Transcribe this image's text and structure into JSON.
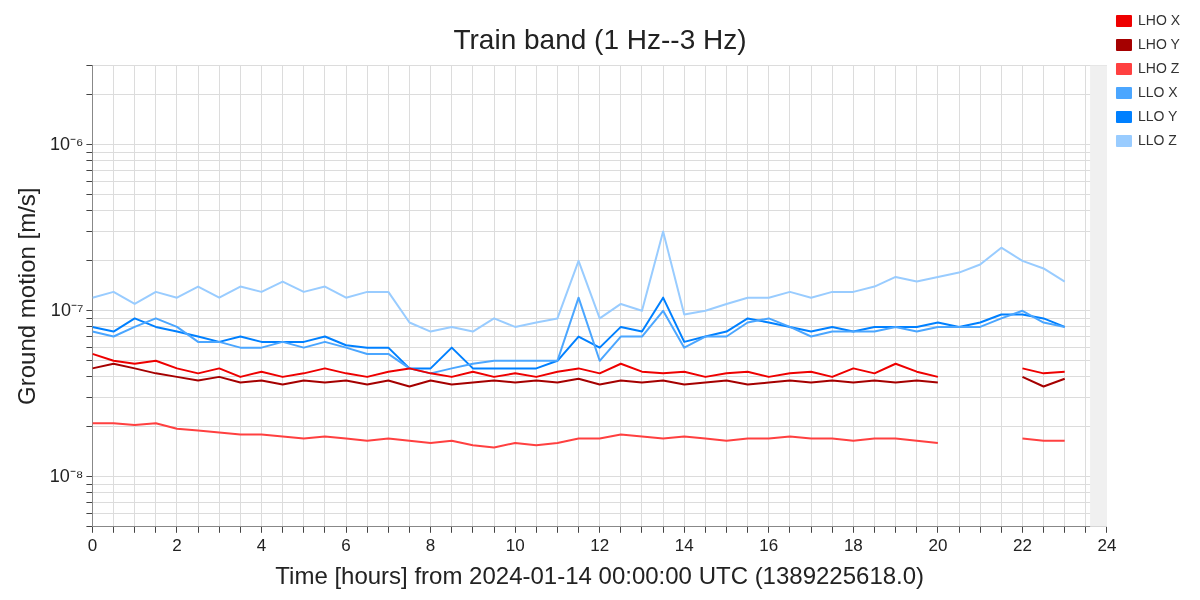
{
  "chart_data": {
    "type": "line",
    "title": "Train band (1 Hz--3 Hz)",
    "xlabel": "Time [hours] from 2024-01-14 00:00:00 UTC (1389225618.0)",
    "ylabel": "Ground motion [m/s]",
    "x": [
      0,
      0.5,
      1,
      1.5,
      2,
      2.5,
      3,
      3.5,
      4,
      4.5,
      5,
      5.5,
      6,
      6.5,
      7,
      7.5,
      8,
      8.5,
      9,
      9.5,
      10,
      10.5,
      11,
      11.5,
      12,
      12.5,
      13,
      13.5,
      14,
      14.5,
      15,
      15.5,
      16,
      16.5,
      17,
      17.5,
      18,
      18.5,
      19,
      19.5,
      20,
      20.5,
      21,
      21.5,
      22,
      22.5,
      23
    ],
    "series": [
      {
        "name": "LHO X",
        "color": "#ee0000",
        "values": [
          5.5e-08,
          5e-08,
          4.8e-08,
          5e-08,
          4.5e-08,
          4.2e-08,
          4.5e-08,
          4e-08,
          4.3e-08,
          4e-08,
          4.2e-08,
          4.5e-08,
          4.2e-08,
          4e-08,
          4.3e-08,
          4.5e-08,
          4.2e-08,
          4e-08,
          4.3e-08,
          4e-08,
          4.2e-08,
          4e-08,
          4.3e-08,
          4.5e-08,
          4.2e-08,
          4.8e-08,
          4.3e-08,
          4.2e-08,
          4.3e-08,
          4e-08,
          4.2e-08,
          4.3e-08,
          4e-08,
          4.2e-08,
          4.3e-08,
          4e-08,
          4.5e-08,
          4.2e-08,
          4.8e-08,
          4.3e-08,
          4e-08,
          null,
          null,
          null,
          4.5e-08,
          4.2e-08,
          4.3e-08
        ]
      },
      {
        "name": "LHO Y",
        "color": "#a50000",
        "values": [
          4.5e-08,
          4.8e-08,
          4.5e-08,
          4.2e-08,
          4e-08,
          3.8e-08,
          4e-08,
          3.7e-08,
          3.8e-08,
          3.6e-08,
          3.8e-08,
          3.7e-08,
          3.8e-08,
          3.6e-08,
          3.8e-08,
          3.5e-08,
          3.8e-08,
          3.6e-08,
          3.7e-08,
          3.8e-08,
          3.7e-08,
          3.8e-08,
          3.7e-08,
          3.9e-08,
          3.6e-08,
          3.8e-08,
          3.7e-08,
          3.8e-08,
          3.6e-08,
          3.7e-08,
          3.8e-08,
          3.6e-08,
          3.7e-08,
          3.8e-08,
          3.7e-08,
          3.8e-08,
          3.7e-08,
          3.8e-08,
          3.7e-08,
          3.8e-08,
          3.7e-08,
          null,
          null,
          null,
          4e-08,
          3.5e-08,
          3.9e-08
        ]
      },
      {
        "name": "LHO Z",
        "color": "#ff4040",
        "values": [
          2.1e-08,
          2.1e-08,
          2.05e-08,
          2.1e-08,
          1.95e-08,
          1.9e-08,
          1.85e-08,
          1.8e-08,
          1.8e-08,
          1.75e-08,
          1.7e-08,
          1.75e-08,
          1.7e-08,
          1.65e-08,
          1.7e-08,
          1.65e-08,
          1.6e-08,
          1.65e-08,
          1.55e-08,
          1.5e-08,
          1.6e-08,
          1.55e-08,
          1.6e-08,
          1.7e-08,
          1.7e-08,
          1.8e-08,
          1.75e-08,
          1.7e-08,
          1.75e-08,
          1.7e-08,
          1.65e-08,
          1.7e-08,
          1.7e-08,
          1.75e-08,
          1.7e-08,
          1.7e-08,
          1.65e-08,
          1.7e-08,
          1.7e-08,
          1.65e-08,
          1.6e-08,
          null,
          null,
          null,
          1.7e-08,
          1.65e-08,
          1.65e-08
        ]
      },
      {
        "name": "LLO X",
        "color": "#4ba6ff",
        "values": [
          7.5e-08,
          7e-08,
          8e-08,
          9e-08,
          8e-08,
          6.5e-08,
          6.5e-08,
          6e-08,
          6e-08,
          6.5e-08,
          6e-08,
          6.5e-08,
          6e-08,
          5.5e-08,
          5.5e-08,
          4.5e-08,
          4.2e-08,
          4.5e-08,
          4.8e-08,
          5e-08,
          5e-08,
          5e-08,
          5e-08,
          1.2e-07,
          5e-08,
          7e-08,
          7e-08,
          1e-07,
          6e-08,
          7e-08,
          7e-08,
          8.5e-08,
          9e-08,
          8e-08,
          7e-08,
          7.5e-08,
          7.5e-08,
          7.5e-08,
          8e-08,
          7.5e-08,
          8e-08,
          8e-08,
          8e-08,
          9e-08,
          1e-07,
          8.5e-08,
          8e-08
        ]
      },
      {
        "name": "LLO Y",
        "color": "#0080ff",
        "values": [
          8e-08,
          7.5e-08,
          9e-08,
          8e-08,
          7.5e-08,
          7e-08,
          6.5e-08,
          7e-08,
          6.5e-08,
          6.5e-08,
          6.5e-08,
          7e-08,
          6.2e-08,
          6e-08,
          6e-08,
          4.5e-08,
          4.5e-08,
          6e-08,
          4.5e-08,
          4.5e-08,
          4.5e-08,
          4.5e-08,
          5e-08,
          7e-08,
          6e-08,
          8e-08,
          7.5e-08,
          1.2e-07,
          6.5e-08,
          7e-08,
          7.5e-08,
          9e-08,
          8.5e-08,
          8e-08,
          7.5e-08,
          8e-08,
          7.5e-08,
          8e-08,
          8e-08,
          8e-08,
          8.5e-08,
          8e-08,
          8.5e-08,
          9.5e-08,
          9.5e-08,
          9e-08,
          8e-08
        ]
      },
      {
        "name": "LLO Z",
        "color": "#99ccff",
        "values": [
          1.2e-07,
          1.3e-07,
          1.1e-07,
          1.3e-07,
          1.2e-07,
          1.4e-07,
          1.2e-07,
          1.4e-07,
          1.3e-07,
          1.5e-07,
          1.3e-07,
          1.4e-07,
          1.2e-07,
          1.3e-07,
          1.3e-07,
          8.5e-08,
          7.5e-08,
          8e-08,
          7.5e-08,
          9e-08,
          8e-08,
          8.5e-08,
          9e-08,
          2e-07,
          9e-08,
          1.1e-07,
          1e-07,
          3e-07,
          9.5e-08,
          1e-07,
          1.1e-07,
          1.2e-07,
          1.2e-07,
          1.3e-07,
          1.2e-07,
          1.3e-07,
          1.3e-07,
          1.4e-07,
          1.6e-07,
          1.5e-07,
          1.6e-07,
          1.7e-07,
          1.9e-07,
          2.4e-07,
          2e-07,
          1.8e-07,
          1.5e-07
        ]
      }
    ],
    "xlim": [
      0,
      24
    ],
    "xticks": [
      0,
      {
        "value": 0.5,
        "label": null
      },
      {
        "value": 1,
        "label": null
      },
      {
        "value": 1.5,
        "label": null
      },
      2,
      {
        "value": 2.5,
        "label": null
      },
      {
        "value": 3,
        "label": null
      },
      {
        "value": 3.5,
        "label": null
      },
      4,
      {
        "value": 4.5,
        "label": null
      },
      {
        "value": 5,
        "label": null
      },
      {
        "value": 5.5,
        "label": null
      },
      6,
      {
        "value": 6.5,
        "label": null
      },
      {
        "value": 7,
        "label": null
      },
      {
        "value": 7.5,
        "label": null
      },
      8,
      {
        "value": 8.5,
        "label": null
      },
      {
        "value": 9,
        "label": null
      },
      {
        "value": 9.5,
        "label": null
      },
      10,
      {
        "value": 10.5,
        "label": null
      },
      {
        "value": 11,
        "label": null
      },
      {
        "value": 11.5,
        "label": null
      },
      12,
      {
        "value": 12.5,
        "label": null
      },
      {
        "value": 13,
        "label": null
      },
      {
        "value": 13.5,
        "label": null
      },
      14,
      {
        "value": 14.5,
        "label": null
      },
      {
        "value": 15,
        "label": null
      },
      {
        "value": 15.5,
        "label": null
      },
      16,
      {
        "value": 16.5,
        "label": null
      },
      {
        "value": 17,
        "label": null
      },
      {
        "value": 17.5,
        "label": null
      },
      18,
      {
        "value": 18.5,
        "label": null
      },
      {
        "value": 19,
        "label": null
      },
      {
        "value": 19.5,
        "label": null
      },
      20,
      {
        "value": 20.5,
        "label": null
      },
      {
        "value": 21,
        "label": null
      },
      {
        "value": 21.5,
        "label": null
      },
      22,
      {
        "value": 22.5,
        "label": null
      },
      {
        "value": 23,
        "label": null
      },
      {
        "value": 23.5,
        "label": null
      },
      24
    ],
    "ylim": [
      5e-09,
      3e-06
    ],
    "yticks": [
      {
        "value": 5e-09,
        "label": null
      },
      {
        "value": 6e-09,
        "label": null
      },
      {
        "value": 7e-09,
        "label": null
      },
      {
        "value": 8e-09,
        "label": null
      },
      {
        "value": 9e-09,
        "label": null
      },
      {
        "value": 1e-08,
        "label": "10⁻⁸"
      },
      {
        "value": 2e-08,
        "label": null
      },
      {
        "value": 3e-08,
        "label": null
      },
      {
        "value": 4e-08,
        "label": null
      },
      {
        "value": 5e-08,
        "label": null
      },
      {
        "value": 6e-08,
        "label": null
      },
      {
        "value": 7e-08,
        "label": null
      },
      {
        "value": 8e-08,
        "label": null
      },
      {
        "value": 9e-08,
        "label": null
      },
      {
        "value": 1e-07,
        "label": "10⁻⁷"
      },
      {
        "value": 2e-07,
        "label": null
      },
      {
        "value": 3e-07,
        "label": null
      },
      {
        "value": 4e-07,
        "label": null
      },
      {
        "value": 5e-07,
        "label": null
      },
      {
        "value": 6e-07,
        "label": null
      },
      {
        "value": 7e-07,
        "label": null
      },
      {
        "value": 8e-07,
        "label": null
      },
      {
        "value": 9e-07,
        "label": null
      },
      {
        "value": 1e-06,
        "label": "10⁻⁶"
      },
      {
        "value": 2e-06,
        "label": null
      },
      {
        "value": 3e-06,
        "label": null
      }
    ],
    "log": "y",
    "grid": true,
    "legend": "right",
    "bands": [
      {
        "axis": "x",
        "from": 23.6,
        "to": 24,
        "color": "#f0f0f0"
      }
    ]
  }
}
